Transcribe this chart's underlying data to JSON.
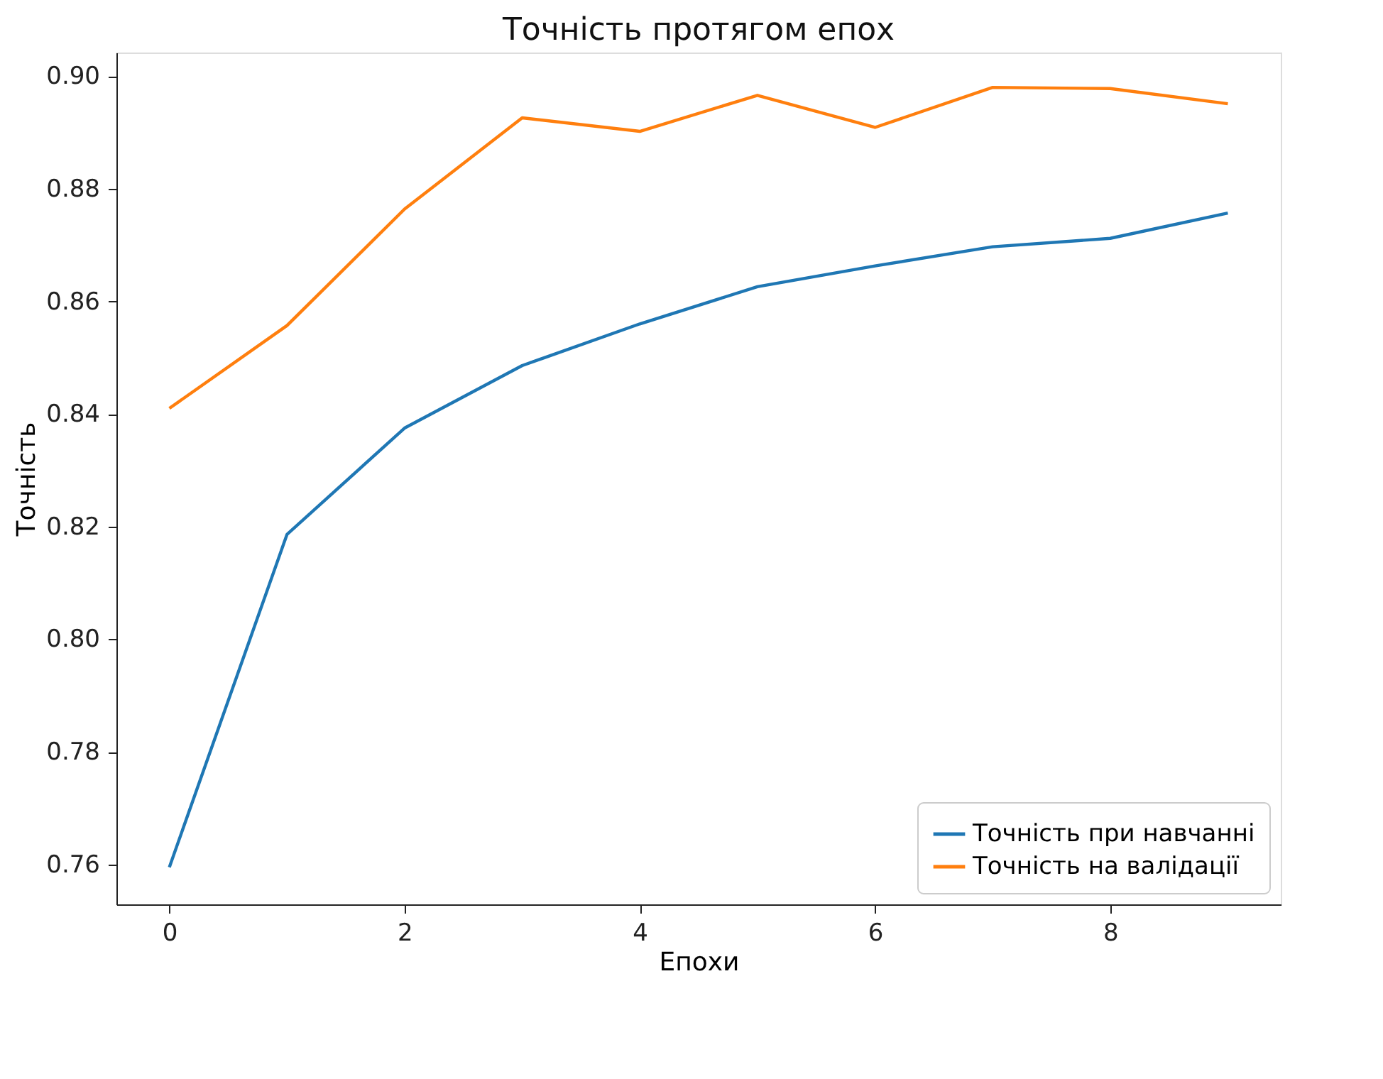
{
  "chart_data": {
    "type": "line",
    "title": "Точність протягом епох",
    "xlabel": "Епохи",
    "ylabel": "Точність",
    "x": [
      0,
      1,
      2,
      3,
      4,
      5,
      6,
      7,
      8,
      9
    ],
    "series": [
      {
        "name": "Точність при навчанні",
        "color": "#1f77b4",
        "values": [
          0.7595,
          0.8186,
          0.8375,
          0.8486,
          0.856,
          0.8626,
          0.8663,
          0.8697,
          0.8712,
          0.8757
        ]
      },
      {
        "name": "Точність на валідації",
        "color": "#ff7f0e",
        "values": [
          0.841,
          0.8557,
          0.8764,
          0.8926,
          0.8902,
          0.8966,
          0.8909,
          0.898,
          0.8978,
          0.8951
        ]
      }
    ],
    "xlim": [
      -0.45,
      9.45
    ],
    "xticks": [
      0,
      2,
      4,
      6,
      8
    ],
    "ylim": [
      0.7529,
      0.9042
    ],
    "yticks": [
      0.76,
      0.78,
      {
        "value": 0.8,
        "label": "0.80"
      },
      0.82,
      0.84,
      0.86,
      0.88,
      {
        "value": 0.9,
        "label": "0.90"
      }
    ],
    "grid": false,
    "legend": "bottom right",
    "marker": "none",
    "line_style": "solid"
  }
}
